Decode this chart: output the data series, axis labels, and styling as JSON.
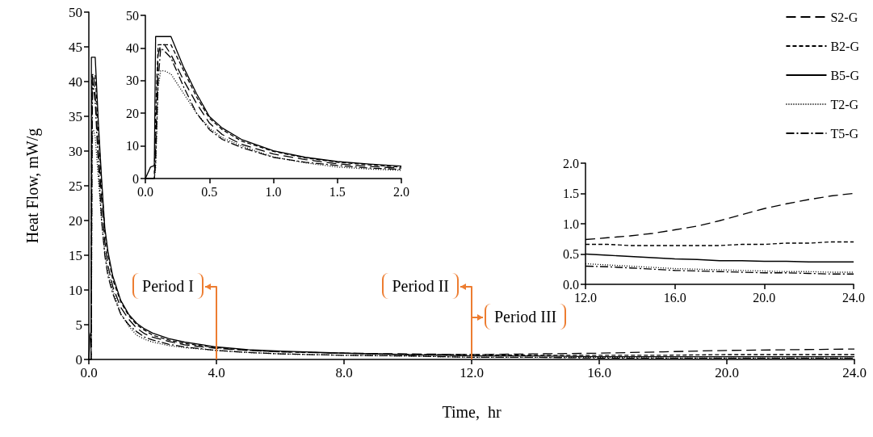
{
  "chart_data": [
    {
      "type": "line",
      "xlabel": "Time,  hr",
      "ylabel": "Heat Flow, mW/g",
      "legend": "top right",
      "grid": false,
      "marker": "none",
      "x": [
        0,
        0.04,
        0.07,
        0.08,
        0.1,
        0.12,
        0.15,
        0.2,
        0.3,
        0.4,
        0.5,
        0.6,
        0.75,
        1,
        1.25,
        1.5,
        1.75,
        2,
        2.5,
        3,
        4,
        5,
        6,
        8,
        10,
        12,
        14,
        16,
        18,
        20,
        22,
        24
      ],
      "xlim": [
        0,
        24
      ],
      "xticks": [
        {
          "value": 0,
          "label": "0.0"
        },
        {
          "value": 4,
          "label": "4.0"
        },
        {
          "value": 8,
          "label": "8.0"
        },
        {
          "value": 12,
          "label": "12.0"
        },
        {
          "value": 16,
          "label": "16.0"
        },
        {
          "value": 20,
          "label": "20.0"
        },
        {
          "value": 24,
          "label": "24.0"
        }
      ],
      "ylim": [
        0,
        50
      ],
      "yticks": [
        0,
        5,
        10,
        15,
        20,
        25,
        30,
        35,
        40,
        45,
        50
      ],
      "series": [
        {
          "name": "S2-G",
          "color": "#000000",
          "line_style": "longdash",
          "values": [
            0,
            0,
            0,
            10,
            38,
            41,
            41,
            38,
            30,
            23,
            17,
            13.5,
            10.5,
            7.5,
            5.8,
            4.5,
            3.7,
            3.2,
            2.6,
            2.1,
            1.6,
            1.3,
            1.1,
            0.9,
            0.8,
            0.7,
            0.8,
            0.9,
            1.1,
            1.3,
            1.4,
            1.5
          ]
        },
        {
          "name": "B2-G",
          "color": "#000000",
          "line_style": "dashed",
          "values": [
            0,
            0,
            0,
            20,
            41,
            41,
            41,
            41,
            33,
            25,
            18.5,
            15,
            11.5,
            8.3,
            6.3,
            5,
            4.2,
            3.5,
            2.8,
            2.3,
            1.7,
            1.3,
            1.1,
            0.9,
            0.7,
            0.7,
            0.6,
            0.6,
            0.6,
            0.7,
            0.7,
            0.7
          ]
        },
        {
          "name": "B5-G",
          "color": "#000000",
          "line_style": "solid",
          "values": [
            0,
            3.5,
            4,
            43.5,
            43.5,
            43.5,
            43.5,
            43.5,
            34,
            26,
            19,
            15.5,
            12,
            8.5,
            6.5,
            5.2,
            4.4,
            3.8,
            3,
            2.5,
            1.8,
            1.4,
            1.2,
            0.9,
            0.7,
            0.5,
            0.5,
            0.4,
            0.4,
            0.4,
            0.4,
            0.4
          ]
        },
        {
          "name": "T2-G",
          "color": "#000000",
          "line_style": "dotted",
          "values": [
            0,
            0,
            0,
            3,
            28,
            33,
            33,
            32,
            26,
            20,
            15.5,
            12.5,
            10,
            6.6,
            4.8,
            3.5,
            2.9,
            2.5,
            2,
            1.7,
            1.3,
            1,
            0.8,
            0.6,
            0.5,
            0.3,
            0.3,
            0.3,
            0.2,
            0.2,
            0.2,
            0.2
          ]
        },
        {
          "name": "T5-G",
          "color": "#000000",
          "line_style": "dashdot",
          "values": [
            0,
            0,
            0,
            5,
            30,
            40,
            39,
            37,
            28,
            20,
            15,
            12,
            9.5,
            6.5,
            5,
            4,
            3.2,
            2.8,
            2.2,
            1.8,
            1.3,
            1,
            0.8,
            0.6,
            0.5,
            0.3,
            0.3,
            0.2,
            0.2,
            0.2,
            0.2,
            0.2
          ]
        }
      ],
      "ref_lines": [
        {
          "axis": "x",
          "value": 4,
          "label": "Period I",
          "color": "#ed7d31"
        },
        {
          "axis": "x",
          "value": 12,
          "label": "Period II",
          "color": "#ed7d31"
        }
      ],
      "annotations": [
        "Period III"
      ]
    },
    {
      "type": "line",
      "grid": false,
      "marker": "none",
      "x": [
        0,
        0.04,
        0.07,
        0.08,
        0.1,
        0.12,
        0.15,
        0.2,
        0.3,
        0.4,
        0.5,
        0.6,
        0.75,
        1,
        1.25,
        1.5,
        1.75,
        2
      ],
      "xlim": [
        0,
        2
      ],
      "xticks": [
        {
          "value": 0,
          "label": "0.0"
        },
        {
          "value": 0.5,
          "label": "0.5"
        },
        {
          "value": 1,
          "label": "1.0"
        },
        {
          "value": 1.5,
          "label": "1.5"
        },
        {
          "value": 2,
          "label": "2.0"
        }
      ],
      "ylim": [
        0,
        50
      ],
      "yticks": [
        0,
        10,
        20,
        30,
        40,
        50
      ],
      "series": [
        {
          "color": "#000000",
          "line_style": "longdash",
          "values": [
            0,
            0,
            0,
            10,
            38,
            41,
            41,
            38,
            30,
            23,
            17,
            13.5,
            10.5,
            7.5,
            5.8,
            4.5,
            3.7,
            3.2
          ]
        },
        {
          "color": "#000000",
          "line_style": "dashed",
          "values": [
            0,
            0,
            0,
            20,
            41,
            41,
            41,
            41,
            33,
            25,
            18.5,
            15,
            11.5,
            8.3,
            6.3,
            5,
            4.2,
            3.5
          ]
        },
        {
          "color": "#000000",
          "line_style": "solid",
          "values": [
            0,
            3.5,
            4,
            43.5,
            43.5,
            43.5,
            43.5,
            43.5,
            34,
            26,
            19,
            15.5,
            12,
            8.5,
            6.5,
            5.2,
            4.4,
            3.8
          ]
        },
        {
          "color": "#000000",
          "line_style": "dotted",
          "values": [
            0,
            0,
            0,
            3,
            28,
            33,
            33,
            32,
            26,
            20,
            15.5,
            12.5,
            10,
            6.6,
            4.8,
            3.5,
            2.9,
            2.5
          ]
        },
        {
          "color": "#000000",
          "line_style": "dashdot",
          "values": [
            0,
            0,
            0,
            5,
            30,
            40,
            39,
            37,
            28,
            20,
            15,
            12,
            9.5,
            6.5,
            5,
            4,
            3.2,
            2.8
          ]
        }
      ]
    },
    {
      "type": "line",
      "grid": false,
      "marker": "none",
      "x": [
        12,
        13,
        14,
        15,
        16,
        17,
        18,
        19,
        20,
        21,
        22,
        23,
        24
      ],
      "xlim": [
        12,
        24
      ],
      "xticks": [
        {
          "value": 12,
          "label": "12.0"
        },
        {
          "value": 16,
          "label": "16.0"
        },
        {
          "value": 20,
          "label": "20.0"
        },
        {
          "value": 24,
          "label": "24.0"
        }
      ],
      "ylim": [
        0,
        2
      ],
      "yticks": [
        {
          "value": 0,
          "label": "0.0"
        },
        {
          "value": 0.5,
          "label": "0.5"
        },
        {
          "value": 1,
          "label": "1.0"
        },
        {
          "value": 1.5,
          "label": "1.5"
        },
        {
          "value": 2,
          "label": "2.0"
        }
      ],
      "series": [
        {
          "color": "#000000",
          "line_style": "longdash",
          "values": [
            0.74,
            0.77,
            0.8,
            0.84,
            0.9,
            0.96,
            1.05,
            1.15,
            1.25,
            1.33,
            1.4,
            1.46,
            1.5
          ]
        },
        {
          "color": "#000000",
          "line_style": "dashed",
          "values": [
            0.66,
            0.66,
            0.64,
            0.64,
            0.64,
            0.64,
            0.64,
            0.66,
            0.66,
            0.68,
            0.68,
            0.7,
            0.7
          ]
        },
        {
          "color": "#000000",
          "line_style": "solid",
          "values": [
            0.5,
            0.48,
            0.46,
            0.44,
            0.42,
            0.41,
            0.39,
            0.39,
            0.38,
            0.38,
            0.37,
            0.37,
            0.37
          ]
        },
        {
          "color": "#000000",
          "line_style": "dotted",
          "values": [
            0.34,
            0.32,
            0.3,
            0.28,
            0.26,
            0.25,
            0.24,
            0.23,
            0.22,
            0.21,
            0.21,
            0.2,
            0.2
          ]
        },
        {
          "color": "#000000",
          "line_style": "dashdot",
          "values": [
            0.3,
            0.29,
            0.27,
            0.25,
            0.23,
            0.22,
            0.21,
            0.2,
            0.19,
            0.19,
            0.18,
            0.17,
            0.17
          ]
        }
      ]
    }
  ]
}
